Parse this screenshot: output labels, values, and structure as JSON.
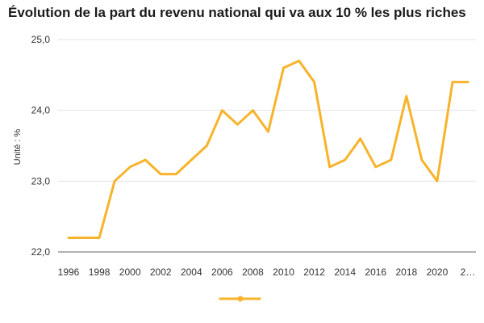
{
  "title": "Évolution de la part du revenu national qui va aux 10 % les plus riches",
  "chart_data": {
    "type": "line",
    "title": "Évolution de la part du revenu national qui va aux 10 % les plus riches",
    "xlabel": "",
    "ylabel": "Unité : %",
    "x": [
      1996,
      1997,
      1998,
      1999,
      2000,
      2001,
      2002,
      2003,
      2004,
      2005,
      2006,
      2007,
      2008,
      2009,
      2010,
      2011,
      2012,
      2013,
      2014,
      2015,
      2016,
      2017,
      2018,
      2019,
      2020,
      2021,
      2022
    ],
    "x_tick_labels": [
      "1996",
      "1998",
      "2000",
      "2002",
      "2004",
      "2006",
      "2008",
      "2010",
      "2012",
      "2014",
      "2016",
      "2018",
      "2020",
      "2…"
    ],
    "ylim": [
      22.0,
      25.0
    ],
    "y_tick_labels": [
      "25,0",
      "24,0",
      "23,0",
      "22,0"
    ],
    "grid": true,
    "legend_position": "bottom-center",
    "color": "#F7B32B",
    "series": [
      {
        "values": [
          22.2,
          22.2,
          22.2,
          23.0,
          23.2,
          23.3,
          23.1,
          23.1,
          23.3,
          23.5,
          24.0,
          23.8,
          24.0,
          23.7,
          24.6,
          24.7,
          24.4,
          23.2,
          23.3,
          23.6,
          23.2,
          23.3,
          24.2,
          23.3,
          23.0,
          24.4,
          24.4
        ]
      }
    ]
  }
}
